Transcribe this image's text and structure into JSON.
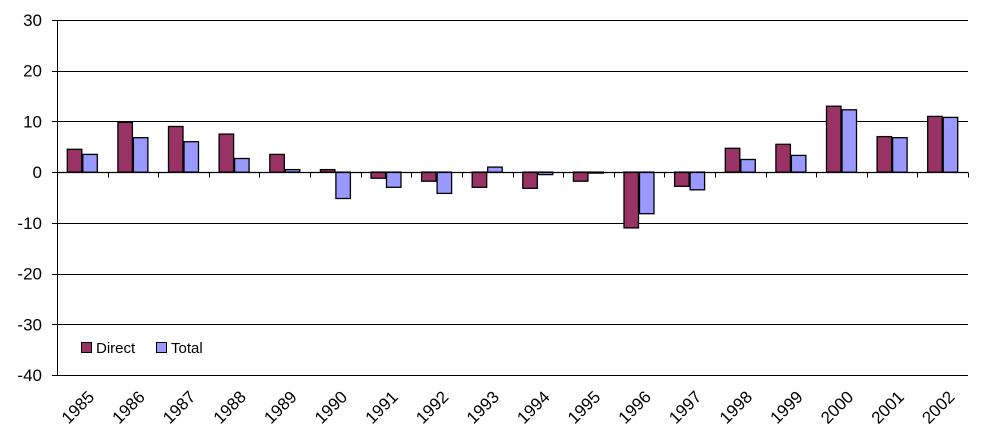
{
  "chart_data": {
    "type": "bar",
    "title": "",
    "xlabel": "",
    "ylabel": "",
    "ylim": [
      -40,
      30
    ],
    "yticks": [
      -40,
      -30,
      -20,
      -10,
      0,
      10,
      20,
      30
    ],
    "grid": true,
    "legend_position": "bottom-left",
    "categories": [
      "1985",
      "1986",
      "1987",
      "1988",
      "1989",
      "1990",
      "1991",
      "1992",
      "1993",
      "1994",
      "1995",
      "1996",
      "1997",
      "1998",
      "1999",
      "2000",
      "2001",
      "2002"
    ],
    "series": [
      {
        "name": "Direct",
        "color": "#993366",
        "values": [
          4.5,
          9.8,
          9.0,
          7.5,
          3.5,
          0.5,
          -1.2,
          -1.8,
          -3.0,
          -3.2,
          -1.8,
          -11.0,
          -2.8,
          4.7,
          5.5,
          13.0,
          7.0,
          11.0
        ]
      },
      {
        "name": "Total",
        "color": "#9999FF",
        "values": [
          3.5,
          6.8,
          6.0,
          2.7,
          0.5,
          -5.2,
          -3.0,
          -4.2,
          1.0,
          -0.5,
          -0.2,
          -8.2,
          -3.5,
          2.5,
          3.3,
          12.3,
          6.8,
          10.8
        ]
      }
    ]
  }
}
